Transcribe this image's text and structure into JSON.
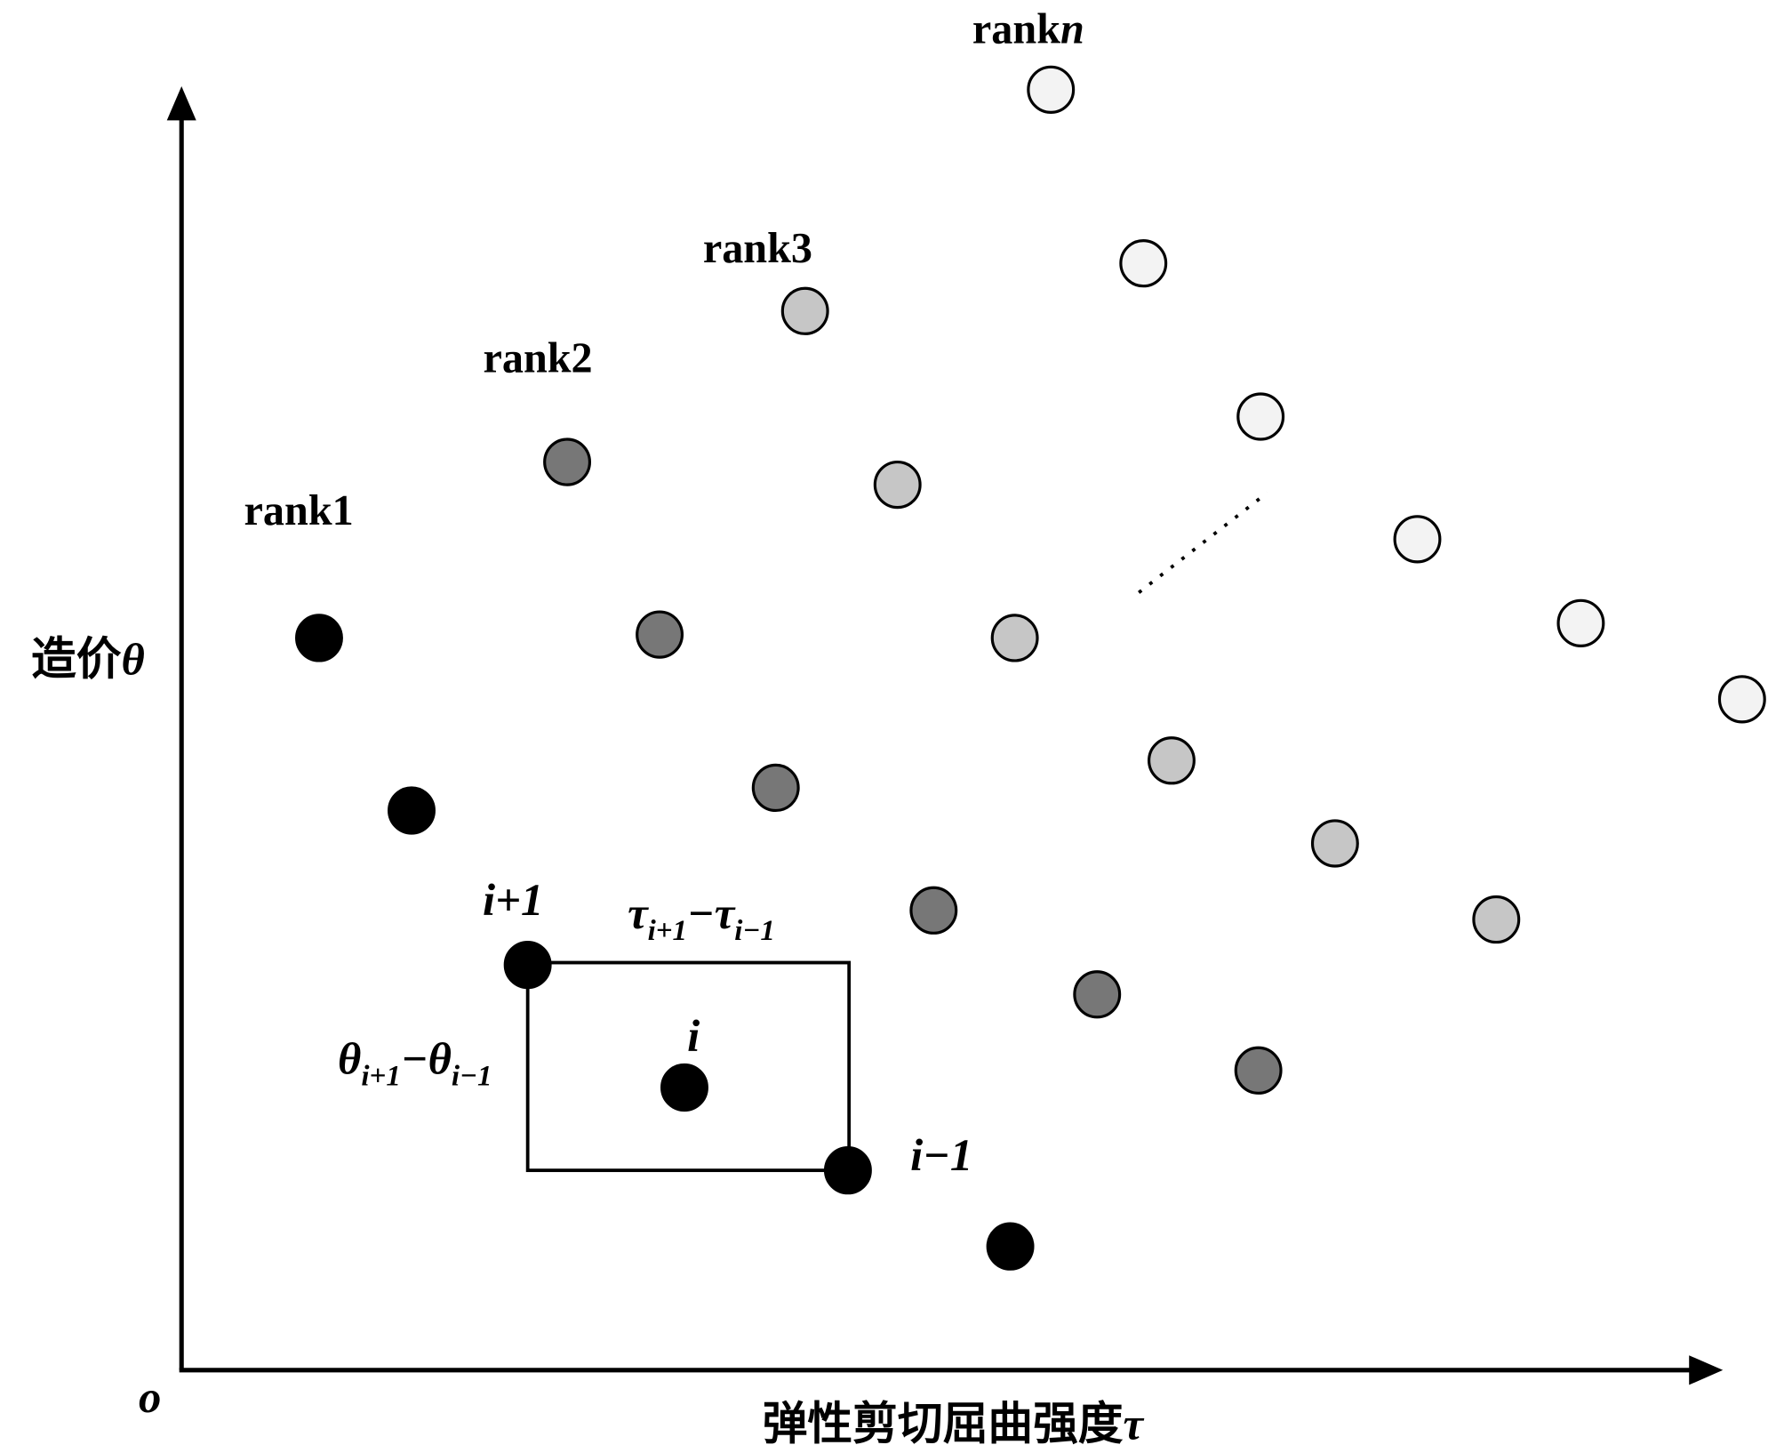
{
  "ranks": [
    "rank1",
    "rank2",
    "rank3",
    [
      "rank",
      "n"
    ]
  ],
  "y_axis_label": [
    "造价",
    "θ"
  ],
  "x_axis_label": [
    "弹性剪切屈曲强度",
    "τ"
  ],
  "origin": "o",
  "point_labels": [
    "i+1",
    "i",
    "i−1"
  ],
  "tau_difference": [
    "τ",
    "i+1",
    "−τ",
    "i−1"
  ],
  "theta_difference": [
    "θ",
    "i+1",
    "−θ",
    "i−1"
  ]
}
